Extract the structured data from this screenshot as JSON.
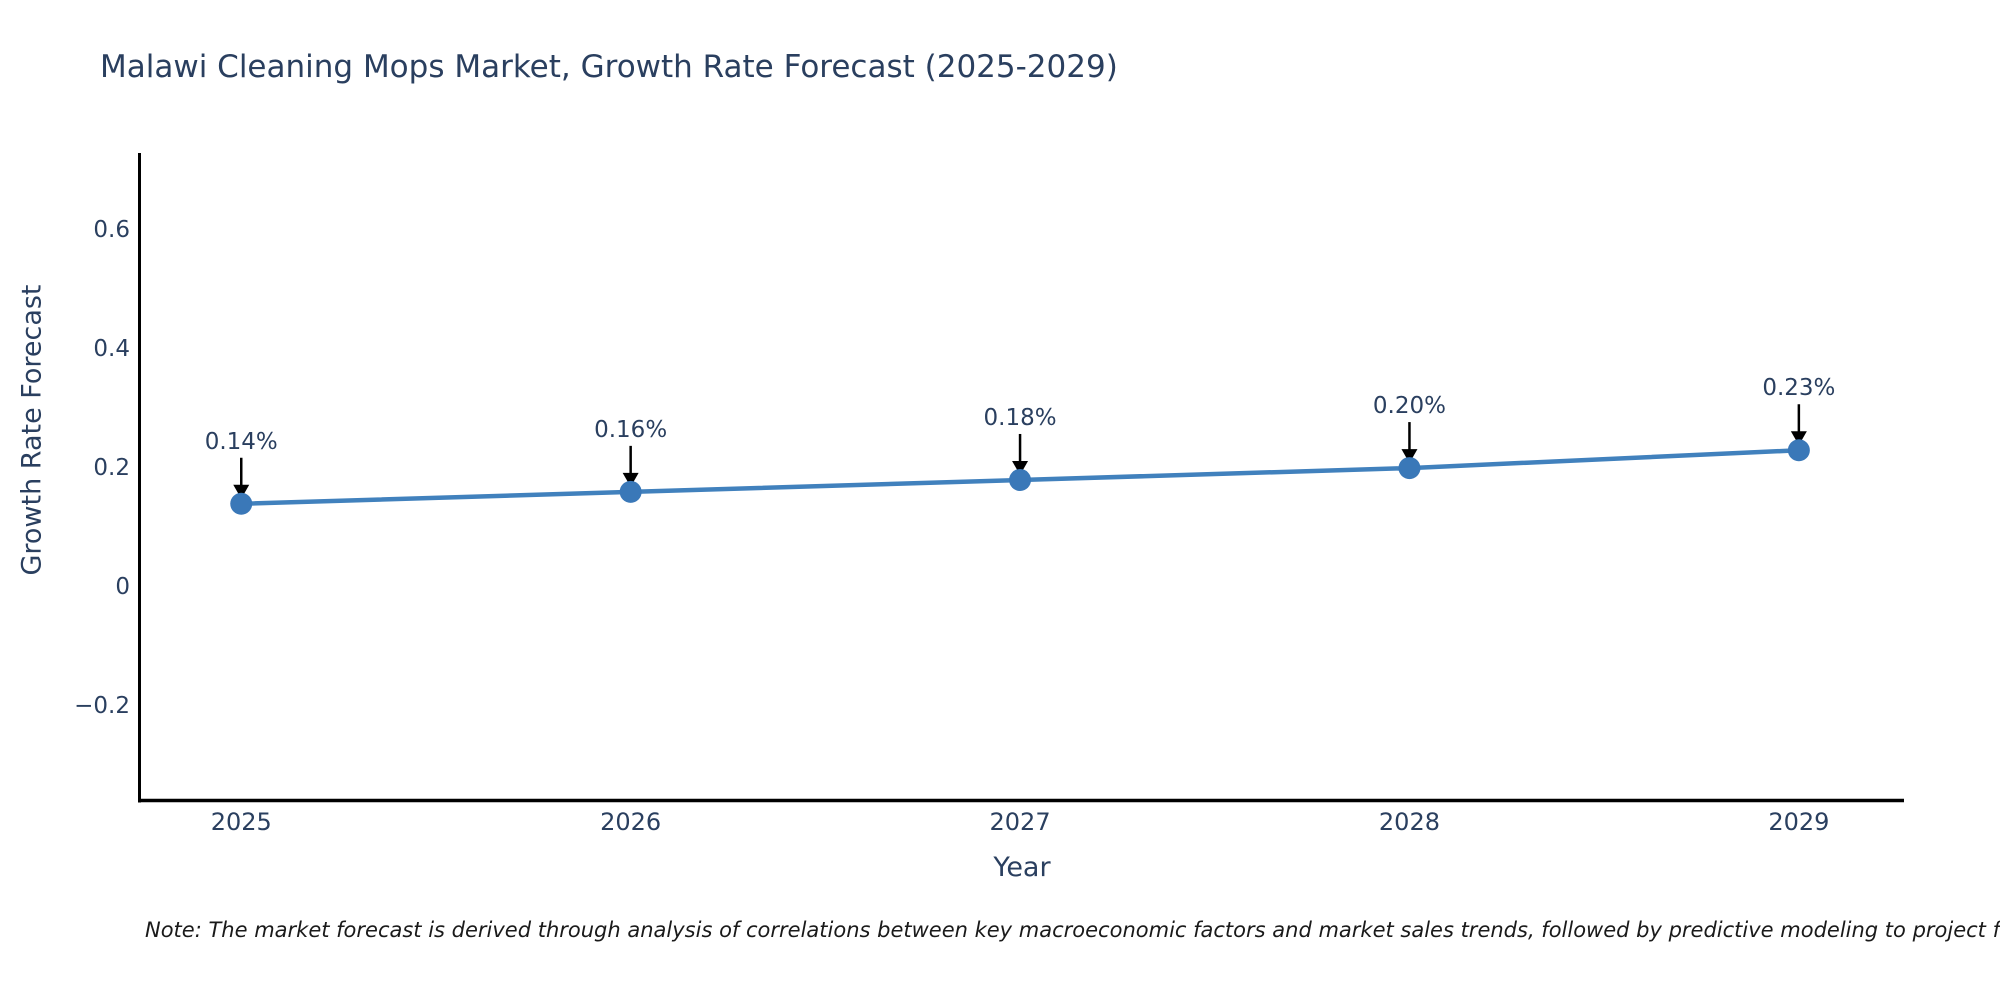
{
  "chart_data": {
    "type": "line",
    "title": "Malawi Cleaning Mops Market, Growth Rate Forecast (2025-2029)",
    "xlabel": "Year",
    "ylabel": "Growth Rate Forecast",
    "x": [
      2025,
      2026,
      2027,
      2028,
      2029
    ],
    "y": [
      0.14,
      0.16,
      0.18,
      0.2,
      0.23
    ],
    "point_labels": [
      "0.14%",
      "0.16%",
      "0.18%",
      "0.20%",
      "0.23%"
    ],
    "series_name": "Growth Rate Forecast",
    "xticks": {
      "values": [
        2025,
        2026,
        2027,
        2028,
        2029
      ],
      "labels": [
        "2025",
        "2026",
        "2027",
        "2028",
        "2029"
      ]
    },
    "yticks": {
      "values": [
        0.6,
        0.4,
        0.2,
        0,
        -0.2
      ],
      "labels": [
        "0.6",
        "0.4",
        "0.2",
        "0",
        "−0.2"
      ]
    },
    "xlim": [
      2024.74,
      2029.27
    ],
    "ylim": [
      -0.36,
      0.73
    ],
    "grid": false,
    "legend": false,
    "note": "Note: The market forecast is derived through analysis of correlations between key macroeconomic factors and market sales trends, followed by predictive modeling to project future sales.",
    "colors": {
      "line": "#4181bd",
      "marker": "#3a78b8",
      "text": "#2a3f5f",
      "spine": "#000000",
      "arrow": "#000000",
      "note_text": "#1a1a1a",
      "background": "#ffffff"
    }
  }
}
